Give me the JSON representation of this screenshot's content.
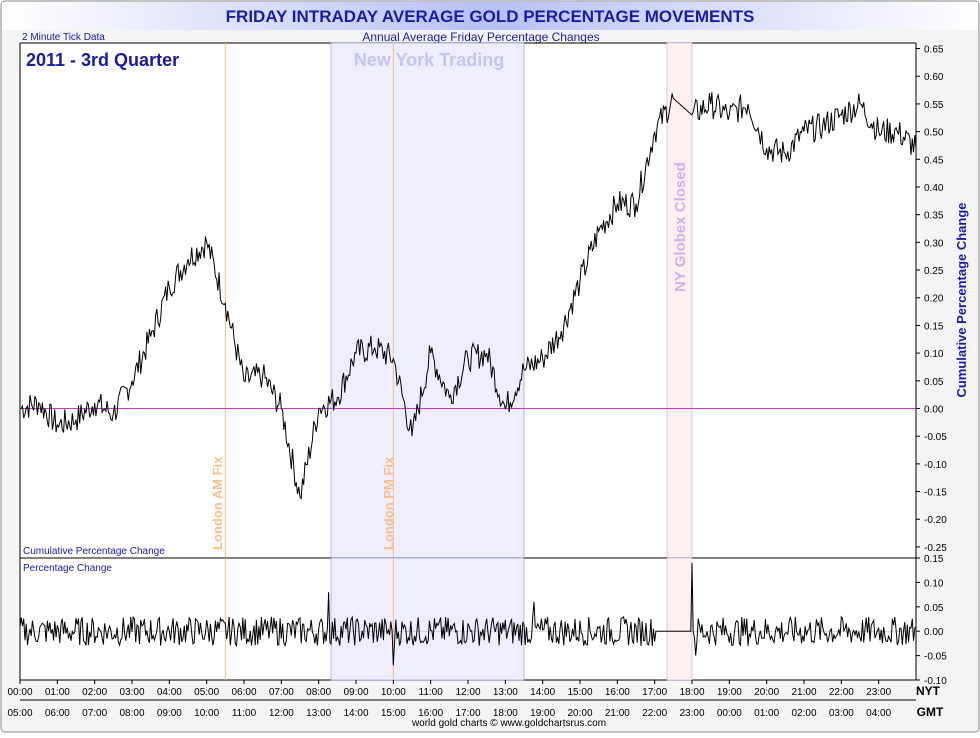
{
  "header": {
    "title": "FRIDAY INTRADAY AVERAGE GOLD PERCENTAGE MOVEMENTS",
    "subtitle": "Annual Average Friday Percentage Changes",
    "tick_note": "2 Minute Tick Data",
    "period": "2011 - 3rd Quarter",
    "footer": "world gold charts © www.goldchartsrus.com"
  },
  "annotations": {
    "ny_trading": "New York Trading",
    "london_am": "London AM Fix",
    "london_pm": "London PM Fix",
    "globex_closed": "NY Globex Closed"
  },
  "colors": {
    "title": "#1a1aa8",
    "axis_label": "#1a1aa8",
    "ny_band": "#eeeeff",
    "globex_band": "#fff0f0",
    "london_line": "#f5c08a",
    "zero_line": "#cc33cc",
    "series": "#000000"
  },
  "chart_data": [
    {
      "type": "line",
      "name": "Cumulative Percentage Change",
      "panel_label": "Cumulative Percentage Change",
      "ylabel": "Cumulative Percentage Change",
      "ylim": [
        -0.27,
        0.66
      ],
      "yticks": [
        "0.65",
        "0.60",
        "0.55",
        "0.50",
        "0.45",
        "0.40",
        "0.35",
        "0.30",
        "0.25",
        "0.20",
        "0.15",
        "0.10",
        "0.05",
        "0.00",
        "-0.05",
        "-0.10",
        "-0.15",
        "-0.20",
        "-0.25"
      ],
      "x": [
        "00:00",
        "00:30",
        "01:00",
        "01:30",
        "02:00",
        "02:30",
        "03:00",
        "03:30",
        "04:00",
        "04:30",
        "05:00",
        "05:30",
        "06:00",
        "06:30",
        "07:00",
        "07:30",
        "08:00",
        "08:30",
        "09:00",
        "09:30",
        "10:00",
        "10:30",
        "11:00",
        "11:30",
        "12:00",
        "12:30",
        "13:00",
        "13:30",
        "14:00",
        "14:30",
        "15:00",
        "15:30",
        "16:00",
        "16:30",
        "17:00",
        "17:30",
        "18:00",
        "18:30",
        "19:00",
        "19:30",
        "20:00",
        "20:30",
        "21:00",
        "21:30",
        "22:00",
        "22:30",
        "23:00",
        "23:30",
        "24:00"
      ],
      "values": [
        0.0,
        0.01,
        -0.03,
        -0.02,
        0.01,
        -0.01,
        0.05,
        0.13,
        0.22,
        0.27,
        0.3,
        0.19,
        0.05,
        0.06,
        0.0,
        -0.16,
        0.0,
        0.02,
        0.1,
        0.11,
        0.09,
        -0.05,
        0.1,
        0.02,
        0.09,
        0.1,
        0.0,
        0.07,
        0.09,
        0.14,
        0.23,
        0.32,
        0.37,
        0.37,
        0.5,
        0.56,
        0.53,
        0.55,
        0.53,
        0.55,
        0.47,
        0.46,
        0.5,
        0.51,
        0.53,
        0.55,
        0.5,
        0.5,
        0.47
      ]
    },
    {
      "type": "line",
      "name": "Percentage Change",
      "panel_label": "Percentage Change",
      "ylim": [
        -0.1,
        0.15
      ],
      "yticks": [
        "0.15",
        "0.10",
        "0.05",
        "0.00",
        "-0.05",
        "-0.10"
      ],
      "spikes": [
        {
          "x": "08:15",
          "value": 0.08
        },
        {
          "x": "10:00",
          "value": -0.07
        },
        {
          "x": "13:45",
          "value": 0.06
        },
        {
          "x": "18:00",
          "value": 0.14
        },
        {
          "x": "18:05",
          "value": -0.05
        }
      ],
      "flat_segment": {
        "from": "17:00",
        "to": "18:00",
        "value": 0.0
      },
      "noise_amplitude": 0.03
    }
  ],
  "x_axis": {
    "nyt_label": "NYT",
    "gmt_label": "GMT",
    "nyt_ticks": [
      "00:00",
      "01:00",
      "02:00",
      "03:00",
      "04:00",
      "05:00",
      "06:00",
      "07:00",
      "08:00",
      "09:00",
      "10:00",
      "11:00",
      "12:00",
      "13:00",
      "14:00",
      "15:00",
      "16:00",
      "17:00",
      "18:00",
      "19:00",
      "20:00",
      "21:00",
      "22:00",
      "23:00"
    ],
    "gmt_ticks": [
      "05:00",
      "06:00",
      "07:00",
      "08:00",
      "09:00",
      "10:00",
      "11:00",
      "12:00",
      "13:00",
      "14:00",
      "15:00",
      "16:00",
      "17:00",
      "18:00",
      "19:00",
      "20:00",
      "21:00",
      "22:00",
      "23:00",
      "00:00",
      "01:00",
      "02:00",
      "03:00",
      "04:00"
    ]
  },
  "events": {
    "london_am_hour": 5.5,
    "london_pm_hour": 10.0,
    "ny_open_hour": 8.33,
    "ny_close_hour": 13.5,
    "globex_close_from": 17.33,
    "globex_close_to": 18.0
  }
}
